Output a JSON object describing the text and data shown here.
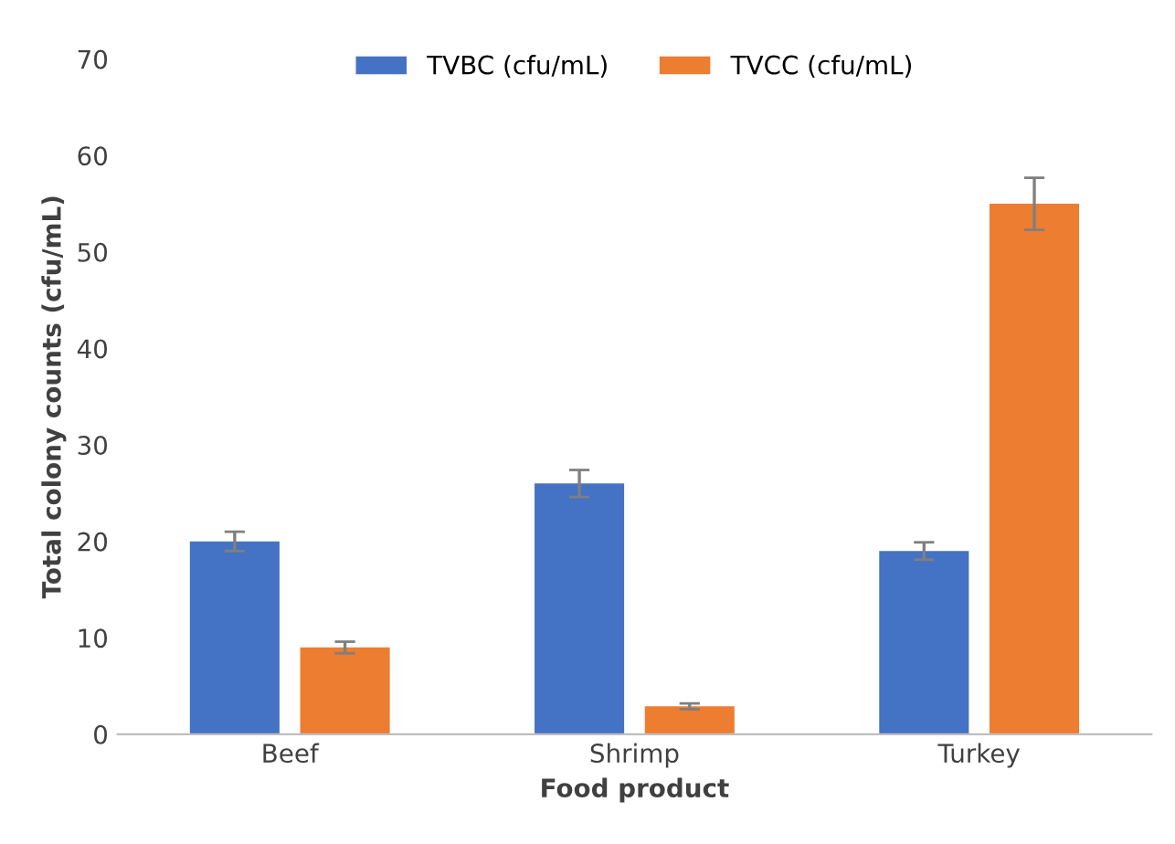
{
  "chart_data": {
    "type": "bar",
    "xlabel": "Food product",
    "ylabel": "Total colony counts (cfu/mL)",
    "categories": [
      "Beef",
      "Shrimp",
      "Turkey"
    ],
    "series": [
      {
        "name": "TVBC (cfu/mL)",
        "color": "#4472c4",
        "values": [
          20,
          26,
          19
        ],
        "errors": [
          1.0,
          1.4,
          0.9
        ]
      },
      {
        "name": "TVCC (cfu/mL)",
        "color": "#ed7d31",
        "values": [
          9,
          2.9,
          55
        ],
        "errors": [
          0.6,
          0.3,
          2.7
        ]
      }
    ],
    "ylim": [
      0,
      70
    ],
    "yticks": [
      0,
      10,
      20,
      30,
      40,
      50,
      60,
      70
    ],
    "grid": false,
    "legend": "top"
  }
}
